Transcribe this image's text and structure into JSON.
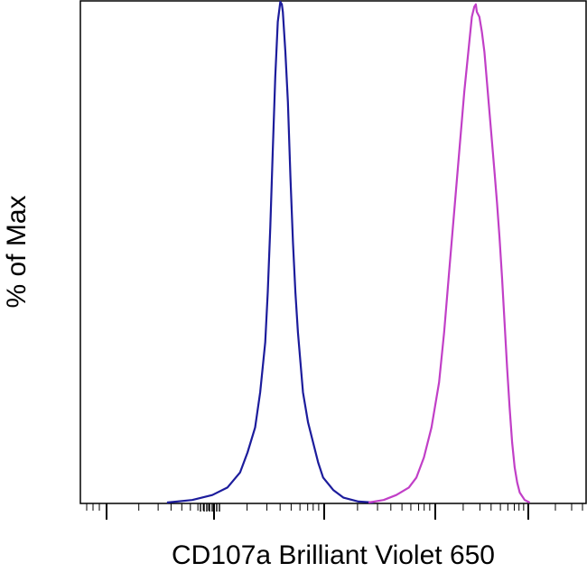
{
  "chart_data": {
    "type": "line",
    "title": "",
    "xlabel": "CD107a Brilliant Violet 650",
    "ylabel": "% of Max",
    "x_scale": "biexponential",
    "y_ticks_shown": false,
    "x_tick_labels_shown": false,
    "ylim": [
      0,
      100
    ],
    "grid": false,
    "legend": "none",
    "series": [
      {
        "color": "#1c1c9c",
        "points": [
          [
            0.17,
            0
          ],
          [
            0.22,
            0.5
          ],
          [
            0.26,
            1.5
          ],
          [
            0.29,
            3
          ],
          [
            0.315,
            6
          ],
          [
            0.33,
            10
          ],
          [
            0.345,
            15
          ],
          [
            0.355,
            22
          ],
          [
            0.365,
            32
          ],
          [
            0.37,
            42
          ],
          [
            0.375,
            55
          ],
          [
            0.38,
            70
          ],
          [
            0.385,
            85
          ],
          [
            0.39,
            96
          ],
          [
            0.395,
            100
          ],
          [
            0.398,
            99.5
          ],
          [
            0.4,
            98
          ],
          [
            0.405,
            90
          ],
          [
            0.41,
            80
          ],
          [
            0.415,
            65
          ],
          [
            0.42,
            52
          ],
          [
            0.425,
            42
          ],
          [
            0.43,
            34
          ],
          [
            0.435,
            28
          ],
          [
            0.44,
            22
          ],
          [
            0.45,
            16
          ],
          [
            0.46,
            12
          ],
          [
            0.47,
            8
          ],
          [
            0.48,
            5
          ],
          [
            0.5,
            2.5
          ],
          [
            0.52,
            1
          ],
          [
            0.55,
            0.2
          ],
          [
            0.58,
            0
          ]
        ]
      },
      {
        "color": "#c13fc7",
        "points": [
          [
            0.57,
            0
          ],
          [
            0.6,
            0.5
          ],
          [
            0.625,
            1.5
          ],
          [
            0.65,
            3
          ],
          [
            0.665,
            5
          ],
          [
            0.68,
            9
          ],
          [
            0.695,
            15
          ],
          [
            0.71,
            24
          ],
          [
            0.72,
            34
          ],
          [
            0.73,
            46
          ],
          [
            0.74,
            58
          ],
          [
            0.75,
            70
          ],
          [
            0.76,
            82
          ],
          [
            0.77,
            92
          ],
          [
            0.775,
            97
          ],
          [
            0.78,
            99
          ],
          [
            0.783,
            99.5
          ],
          [
            0.785,
            98
          ],
          [
            0.79,
            97
          ],
          [
            0.795,
            94
          ],
          [
            0.8,
            90
          ],
          [
            0.805,
            84
          ],
          [
            0.81,
            78
          ],
          [
            0.815,
            72
          ],
          [
            0.82,
            66
          ],
          [
            0.825,
            60
          ],
          [
            0.83,
            53
          ],
          [
            0.835,
            45
          ],
          [
            0.84,
            36
          ],
          [
            0.845,
            27
          ],
          [
            0.85,
            19
          ],
          [
            0.855,
            12
          ],
          [
            0.86,
            7
          ],
          [
            0.865,
            4
          ],
          [
            0.87,
            2
          ],
          [
            0.88,
            0.5
          ],
          [
            0.89,
            0
          ]
        ]
      }
    ]
  }
}
